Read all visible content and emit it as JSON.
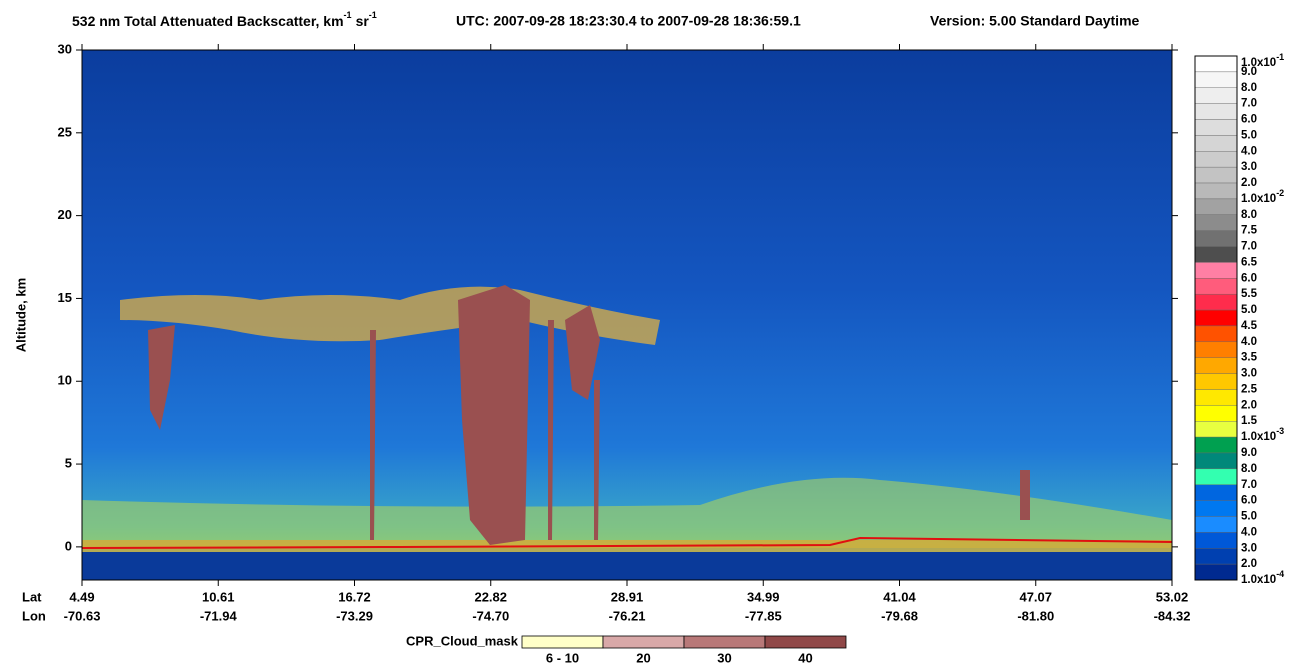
{
  "chart_data": {
    "type": "curtain",
    "title": "532 nm Total Attenuated Backscatter, km",
    "title_unit_exp": "-1",
    "title_unit2": "sr",
    "title_unit2_exp": "-1",
    "utc": "UTC:  2007-09-28 18:23:30.4  to  2007-09-28 18:36:59.1",
    "version": "Version: 5.00  Standard  Daytime",
    "ylabel": "Altitude, km",
    "ylim": [
      -2,
      30
    ],
    "yticks": [
      0,
      5,
      10,
      15,
      20,
      25,
      30
    ],
    "row_labels": [
      "Lat",
      "Lon"
    ],
    "lat": [
      "4.49",
      "10.61",
      "16.72",
      "22.82",
      "28.91",
      "34.99",
      "41.04",
      "47.07",
      "53.02"
    ],
    "lon": [
      "-70.63",
      "-71.94",
      "-73.29",
      "-74.70",
      "-76.21",
      "-77.85",
      "-79.68",
      "-81.80",
      "-84.32"
    ],
    "colorbar": {
      "labels": [
        {
          "mantissa": "1.0x10",
          "exp": "-1"
        },
        "9.0",
        "8.0",
        "7.0",
        "6.0",
        "5.0",
        "4.0",
        "3.0",
        "2.0",
        {
          "mantissa": "1.0x10",
          "exp": "-2"
        },
        "8.0",
        "7.5",
        "7.0",
        "6.5",
        "6.0",
        "5.5",
        "5.0",
        "4.5",
        "4.0",
        "3.5",
        "3.0",
        "2.5",
        "2.0",
        "1.5",
        {
          "mantissa": "1.0x10",
          "exp": "-3"
        },
        "9.0",
        "8.0",
        "7.0",
        "6.0",
        "5.0",
        "4.0",
        "3.0",
        "2.0",
        {
          "mantissa": "1.0x10",
          "exp": "-4"
        }
      ],
      "colors": [
        "#ffffff",
        "#f6f6f6",
        "#eeeeee",
        "#e6e6e6",
        "#dddddd",
        "#d5d5d5",
        "#cccccc",
        "#c3c3c3",
        "#b9b9b9",
        "#a2a2a2",
        "#8c8c8c",
        "#717171",
        "#4e4e4e",
        "#ff7fa4",
        "#ff5c7c",
        "#ff2c4c",
        "#ff0000",
        "#ff5200",
        "#ff7f00",
        "#ffa800",
        "#ffc800",
        "#ffe800",
        "#ffff00",
        "#e8ff40",
        "#00a050",
        "#00887a",
        "#33ffb0",
        "#0066e0",
        "#0078f0",
        "#1a8cff",
        "#0058d8",
        "#0040b0",
        "#002a90"
      ]
    },
    "cpr_legend": {
      "title": "CPR_Cloud_mask",
      "labels": [
        "6 - 10",
        "20",
        "30",
        "40"
      ],
      "colors": [
        "#ffffc8",
        "#d8a8a8",
        "#b87878",
        "#904848"
      ]
    }
  }
}
